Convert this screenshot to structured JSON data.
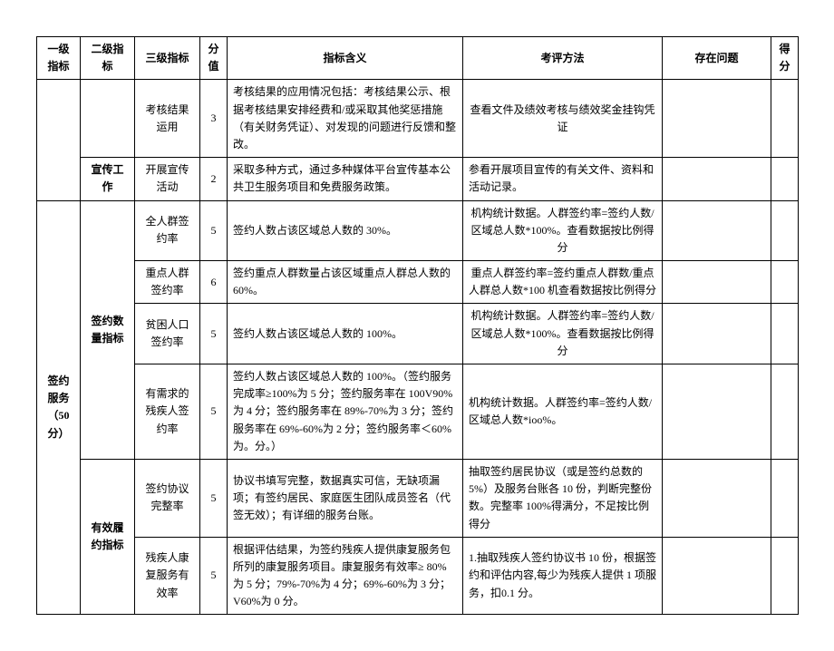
{
  "headers": {
    "level1": "一级指标",
    "level2": "二级指标",
    "level3": "三级指标",
    "score": "分值",
    "meaning": "指标含义",
    "method": "考评方法",
    "issue": "存在问题",
    "got": "得分"
  },
  "rows": [
    {
      "l1": "",
      "l2": "",
      "l3": "考核结果运用",
      "score": "3",
      "meaning": "考核结果的应用情况包括：考核结果公示、根据考核结果安排经费和/或采取其他奖惩措施（有关财务凭证）、对发现的问题进行反馈和整改。",
      "method": "查看文件及绩效考核与绩效奖金挂钩凭证",
      "issue": "",
      "got": ""
    },
    {
      "l2": "宣传工作",
      "l3": "开展宣传活动",
      "score": "2",
      "meaning": "采取多种方式，通过多种媒体平台宣传基本公共卫生服务项目和免费服务政策。",
      "method": "参看开展项目宣传的有关文件、资料和活动记录。",
      "issue": "",
      "got": ""
    },
    {
      "l1": "签约服务（50分）",
      "l2": "签约数量指标",
      "l3": "全人群签约率",
      "score": "5",
      "meaning": "签约人数占该区域总人数的 30%。",
      "method": "机构统计数据。人群签约率=签约人数/区域总人数*100%。查看数据按比例得分",
      "issue": "",
      "got": ""
    },
    {
      "l3": "重点人群签约率",
      "score": "6",
      "meaning": "签约重点人群数量占该区域重点人群总人数的 60%。",
      "method": "重点人群签约率=签约重点人群数/重点人群总人数*100 机查看数据按比例得分",
      "issue": "",
      "got": ""
    },
    {
      "l3": "贫困人口签约率",
      "score": "5",
      "meaning": "签约人数占该区域总人数的 100%。",
      "method": "机构统计数据。人群签约率=签约人数/区域总人数*100%。查看数据按比例得分",
      "issue": "",
      "got": ""
    },
    {
      "l3": "有需求的残疾人签约率",
      "score": "5",
      "meaning": "签约人数占该区域总人数的 100%。（签约服务完成率≥100%为 5 分；签约服务率在 100V90%为 4 分；签约服务率在 89%-70%为 3 分；签约服务率在 69%-60%为 2 分；签约服务率＜60%为。分。）",
      "method": "机构统计数据。人群签约率=签约人数/区域总人数*ioo%。",
      "issue": "",
      "got": ""
    },
    {
      "l2": "有效履约指标",
      "l3": "签约协议完整率",
      "score": "5",
      "meaning": "协议书填写完整，数据真实可信，无缺项漏项；有签约居民、家庭医生团队成员签名（代签无效）；有详细的服务台账。",
      "method": "抽取签约居民协议（或是签约总数的5%）及服务台账各 10 份，判断完整份数。完整率 100%得满分，不足按比例得分",
      "issue": "",
      "got": ""
    },
    {
      "l3": "残疾人康复服务有效率",
      "score": "5",
      "meaning": "根据评估结果，为签约残疾人提供康复服务包所列的康复服务项目。康复服务有效率≥ 80%为 5 分；79%-70%为 4 分；69%-60%为 3 分；V60%为 0 分。",
      "method": "1.抽取残疾人签约协议书 10 份，根据签约和评估内容,每少为残疾人提供 1 项服务，扣0.1 分。",
      "issue": "",
      "got": ""
    }
  ]
}
